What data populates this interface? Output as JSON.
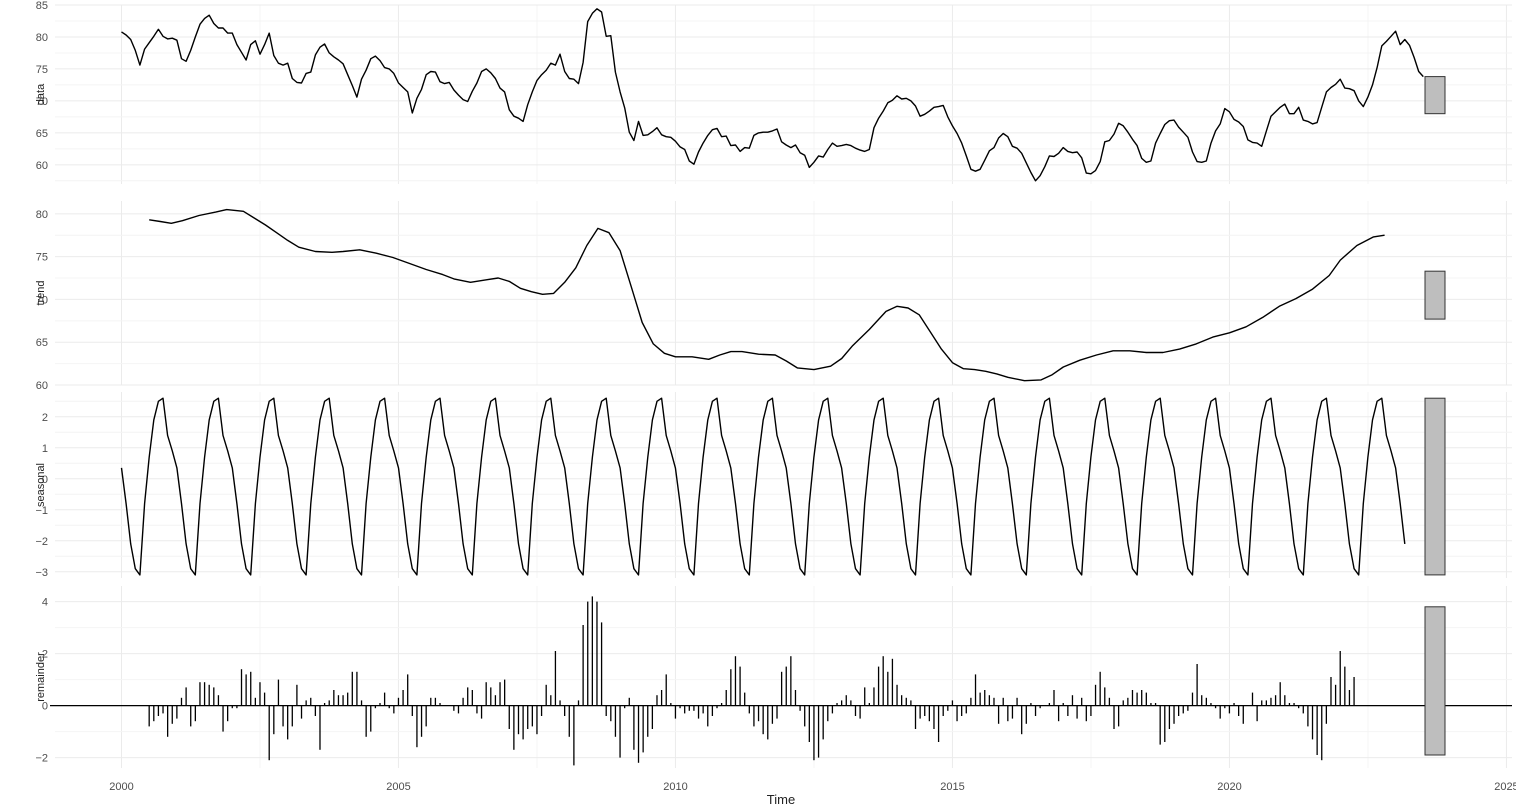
{
  "chart_data": {
    "type": "line",
    "title": "",
    "xlabel": "Time",
    "x_ticks": [
      2000,
      2005,
      2010,
      2015,
      2020,
      2025
    ],
    "xlim": [
      1998.8,
      2025.1
    ],
    "grid": true,
    "panels": [
      {
        "name": "data",
        "ylabel": "data",
        "mark": "line",
        "ylim": [
          57,
          85
        ],
        "y_ticks": [
          60,
          65,
          70,
          75,
          80,
          85
        ],
        "start": 2000.0,
        "step": 0.08333,
        "values": [
          80.8,
          80.3,
          79.6,
          77.9,
          75.6,
          78.1,
          79.1,
          80.1,
          81.2,
          80.1,
          79.7,
          79.8,
          79.5,
          76.6,
          76.2,
          77.9,
          80.0,
          82.0,
          82.9,
          83.4,
          82.1,
          81.4,
          81.4,
          80.6,
          80.6,
          78.8,
          77.6,
          76.4,
          78.8,
          79.4,
          77.3,
          78.8,
          80.6,
          77.1,
          75.9,
          75.6,
          75.9,
          73.5,
          72.9,
          72.8,
          74.3,
          74.5,
          77.2,
          78.4,
          78.9,
          77.5,
          76.9,
          76.4,
          75.8,
          74.1,
          72.4,
          70.6,
          73.4,
          74.8,
          76.6,
          77.0,
          76.3,
          75.2,
          75.0,
          74.3,
          72.8,
          72.1,
          71.4,
          68.1,
          70.4,
          71.8,
          74.1,
          74.6,
          74.5,
          73.0,
          72.7,
          72.9,
          71.7,
          70.9,
          70.2,
          69.9,
          71.5,
          72.8,
          74.6,
          75.0,
          74.4,
          73.5,
          72.0,
          71.4,
          68.6,
          67.6,
          67.3,
          66.8,
          69.4,
          71.4,
          73.2,
          74.1,
          74.8,
          75.9,
          75.6,
          77.3,
          74.6,
          73.5,
          73.4,
          72.7,
          76.0,
          82.4,
          83.7,
          84.4,
          83.9,
          80.1,
          80.2,
          74.5,
          71.4,
          68.9,
          65.1,
          63.8,
          66.8,
          64.6,
          64.7,
          65.2,
          65.8,
          64.7,
          64.4,
          64.3,
          63.7,
          62.8,
          62.4,
          60.6,
          60.1,
          62.0,
          63.4,
          64.6,
          65.5,
          65.7,
          64.4,
          64.5,
          63.0,
          63.1,
          62.1,
          62.7,
          62.6,
          64.6,
          65.0,
          65.1,
          65.1,
          65.3,
          65.6,
          63.6,
          63.1,
          62.7,
          63.1,
          61.9,
          61.5,
          59.6,
          60.4,
          61.4,
          61.2,
          62.4,
          63.4,
          62.9,
          63.0,
          63.2,
          63.0,
          62.6,
          62.3,
          62.1,
          62.4,
          65.8,
          67.3,
          68.4,
          69.7,
          70.1,
          70.8,
          70.3,
          70.4,
          70.0,
          69.2,
          67.6,
          67.9,
          68.4,
          69.0,
          69.1,
          69.3,
          67.5,
          66.1,
          64.9,
          63.4,
          61.4,
          59.3,
          59.0,
          59.3,
          60.7,
          62.2,
          62.7,
          64.2,
          64.9,
          64.4,
          62.9,
          62.6,
          61.8,
          60.3,
          58.8,
          57.5,
          58.3,
          59.7,
          61.4,
          61.3,
          61.8,
          62.7,
          62.1,
          61.9,
          62.0,
          61.1,
          58.7,
          58.6,
          59.1,
          60.5,
          63.6,
          63.8,
          64.8,
          66.5,
          66.1,
          65.1,
          64.0,
          63.0,
          61.0,
          60.4,
          60.6,
          63.4,
          64.9,
          66.3,
          66.9,
          67.0,
          65.9,
          65.1,
          64.3,
          62.0,
          60.5,
          60.4,
          60.6,
          63.4,
          65.3,
          66.4,
          68.8,
          68.3,
          67.1,
          66.7,
          66.0,
          63.9,
          63.5,
          63.4,
          62.9,
          65.3,
          67.6,
          68.3,
          69.0,
          69.5,
          68.0,
          68.0,
          69.0,
          67.0,
          66.8,
          66.4,
          66.6,
          69.0,
          71.4,
          72.1,
          72.6,
          73.4,
          72.0,
          71.9,
          71.6,
          70.0,
          69.1,
          70.6,
          72.5,
          75.2,
          78.6,
          79.3,
          80.1,
          80.9,
          78.8,
          79.6,
          78.7,
          76.8,
          74.6,
          73.8
        ]
      },
      {
        "name": "trend",
        "ylabel": "trend",
        "mark": "line",
        "ylim": [
          60,
          81.5
        ],
        "y_ticks": [
          60,
          65,
          70,
          75,
          80
        ],
        "x_points": [
          2000.5,
          2000.7,
          2000.9,
          2001.1,
          2001.4,
          2001.7,
          2001.9,
          2002.2,
          2002.4,
          2002.6,
          2002.8,
          2003.0,
          2003.2,
          2003.5,
          2003.8,
          2004.0,
          2004.3,
          2004.6,
          2004.9,
          2005.2,
          2005.5,
          2005.8,
          2006.0,
          2006.3,
          2006.6,
          2006.8,
          2007.0,
          2007.2,
          2007.4,
          2007.6,
          2007.8,
          2008.0,
          2008.2,
          2008.4,
          2008.6,
          2008.8,
          2009.0,
          2009.2,
          2009.4,
          2009.6,
          2009.8,
          2010.0,
          2010.3,
          2010.6,
          2010.8,
          2011.0,
          2011.2,
          2011.5,
          2011.8,
          2012.0,
          2012.2,
          2012.5,
          2012.8,
          2013.0,
          2013.2,
          2013.5,
          2013.8,
          2014.0,
          2014.2,
          2014.4,
          2014.6,
          2014.8,
          2015.0,
          2015.2,
          2015.4,
          2015.6,
          2015.8,
          2016.0,
          2016.3,
          2016.6,
          2016.8,
          2017.0,
          2017.3,
          2017.6,
          2017.9,
          2018.2,
          2018.5,
          2018.8,
          2019.1,
          2019.4,
          2019.7,
          2020.0,
          2020.3,
          2020.6,
          2020.9,
          2021.2,
          2021.5,
          2021.8,
          2022.0,
          2022.3,
          2022.6,
          2022.8
        ],
        "values": [
          79.3,
          79.1,
          78.9,
          79.2,
          79.8,
          80.2,
          80.5,
          80.3,
          79.5,
          78.7,
          77.8,
          76.9,
          76.1,
          75.6,
          75.5,
          75.6,
          75.8,
          75.4,
          74.9,
          74.2,
          73.5,
          72.9,
          72.4,
          72.0,
          72.3,
          72.5,
          72.1,
          71.3,
          70.9,
          70.6,
          70.7,
          72.0,
          73.7,
          76.3,
          78.3,
          77.8,
          75.7,
          71.5,
          67.3,
          64.8,
          63.7,
          63.3,
          63.3,
          63.0,
          63.5,
          63.9,
          63.9,
          63.6,
          63.5,
          62.8,
          62.0,
          61.8,
          62.2,
          63.1,
          64.6,
          66.5,
          68.6,
          69.2,
          69.0,
          68.2,
          66.2,
          64.2,
          62.6,
          61.9,
          61.8,
          61.6,
          61.3,
          60.9,
          60.5,
          60.6,
          61.2,
          62.1,
          62.9,
          63.5,
          64.0,
          64.0,
          63.8,
          63.8,
          64.2,
          64.8,
          65.6,
          66.1,
          66.8,
          67.9,
          69.2,
          70.1,
          71.2,
          72.8,
          74.6,
          76.3,
          77.3,
          77.5
        ]
      },
      {
        "name": "seasonal",
        "ylabel": "seasonal",
        "mark": "line",
        "ylim": [
          -3.2,
          2.8
        ],
        "y_ticks": [
          -3,
          -2,
          -1,
          0,
          1,
          2
        ],
        "start": 2000.0,
        "step": 0.08333,
        "cycle": [
          0.35,
          -0.8,
          -2.1,
          -2.9,
          -3.1,
          -0.8,
          0.7,
          1.9,
          2.5,
          2.6,
          1.4,
          0.9
        ],
        "cycles": 23
      },
      {
        "name": "remainder",
        "ylabel": "remainder",
        "mark": "bars",
        "ylim": [
          -2.4,
          4.6
        ],
        "y_ticks": [
          -2,
          0,
          2,
          4
        ],
        "start": 2000.5,
        "step": 0.08333,
        "values": [
          -0.8,
          -0.6,
          -0.4,
          -0.3,
          -1.2,
          -0.7,
          -0.5,
          0.3,
          0.7,
          -0.8,
          -0.6,
          0.9,
          0.9,
          0.8,
          0.7,
          0.4,
          -1.0,
          -0.6,
          -0.1,
          -0.1,
          1.4,
          1.2,
          1.3,
          0.3,
          0.9,
          0.5,
          -2.1,
          -1.1,
          1.0,
          -0.8,
          -1.3,
          -0.8,
          0.8,
          -0.5,
          0.2,
          0.3,
          -0.4,
          -1.7,
          0.1,
          0.2,
          0.6,
          0.4,
          0.4,
          0.5,
          1.3,
          1.3,
          0.2,
          -1.2,
          -1.0,
          -0.1,
          0.1,
          0.5,
          -0.1,
          -0.3,
          0.3,
          0.6,
          1.2,
          -0.4,
          -1.6,
          -1.2,
          -0.8,
          0.3,
          0.3,
          0.1,
          0.0,
          0.0,
          -0.2,
          -0.3,
          0.3,
          0.7,
          0.6,
          -0.3,
          -0.5,
          0.9,
          0.7,
          0.4,
          0.9,
          1.0,
          -0.9,
          -1.7,
          -1.1,
          -1.3,
          -0.9,
          -0.8,
          -1.1,
          -0.4,
          0.8,
          0.4,
          2.1,
          0.2,
          -0.4,
          -1.2,
          -2.3,
          0.2,
          3.1,
          4.0,
          4.2,
          4.0,
          3.2,
          -0.4,
          -0.6,
          -1.2,
          -2.0,
          -0.1,
          0.3,
          -1.7,
          -2.2,
          -1.8,
          -1.2,
          -0.9,
          0.4,
          0.6,
          1.2,
          0.1,
          -0.5,
          -0.1,
          -0.3,
          -0.2,
          -0.2,
          -0.5,
          -0.3,
          -0.8,
          -0.4,
          -0.1,
          0.1,
          0.6,
          1.4,
          1.9,
          1.5,
          0.5,
          -0.3,
          -0.8,
          -0.6,
          -1.1,
          -1.3,
          -0.7,
          -0.5,
          1.3,
          1.5,
          1.9,
          0.6,
          -0.2,
          -0.8,
          -1.4,
          -2.1,
          -2.0,
          -1.3,
          -0.6,
          -0.3,
          0.1,
          0.2,
          0.4,
          0.2,
          -0.4,
          -0.5,
          0.7,
          0.1,
          0.7,
          1.5,
          1.9,
          1.3,
          1.8,
          0.8,
          0.4,
          0.3,
          0.2,
          -0.9,
          -0.5,
          -0.4,
          -0.6,
          -0.9,
          -1.4,
          -0.4,
          -0.2,
          0.2,
          -0.6,
          -0.4,
          -0.3,
          0.3,
          1.2,
          0.5,
          0.6,
          0.4,
          0.3,
          -0.7,
          0.3,
          -0.6,
          -0.5,
          0.3,
          -1.1,
          -0.7,
          0.1,
          -0.4,
          -0.1,
          0.0,
          0.1,
          0.6,
          -0.6,
          0.1,
          -0.4,
          0.4,
          -0.5,
          0.3,
          -0.6,
          -0.4,
          0.8,
          1.3,
          0.7,
          0.3,
          -0.9,
          -0.8,
          0.2,
          0.3,
          0.6,
          0.5,
          0.6,
          0.5,
          0.1,
          0.1,
          -1.5,
          -1.4,
          -0.9,
          -0.7,
          -0.4,
          -0.3,
          -0.2,
          0.5,
          1.6,
          0.4,
          0.3,
          0.1,
          -0.1,
          -0.5,
          -0.1,
          -0.3,
          0.1,
          -0.4,
          -0.7,
          0.0,
          0.5,
          -0.6,
          0.2,
          0.2,
          0.3,
          0.4,
          0.9,
          0.4,
          0.1,
          0.1,
          -0.1,
          -0.3,
          -0.8,
          -1.3,
          -1.9,
          -2.1,
          -0.7,
          1.1,
          0.8,
          2.1,
          1.5,
          0.6,
          1.1
        ]
      }
    ],
    "range_bars": [
      {
        "panel": "data",
        "range": [
          68.0,
          73.8
        ]
      },
      {
        "panel": "trend",
        "range": [
          67.7,
          73.3
        ]
      },
      {
        "panel": "seasonal",
        "range": [
          -3.1,
          2.6
        ]
      },
      {
        "panel": "remainder",
        "range": [
          -1.9,
          3.8
        ]
      }
    ]
  }
}
